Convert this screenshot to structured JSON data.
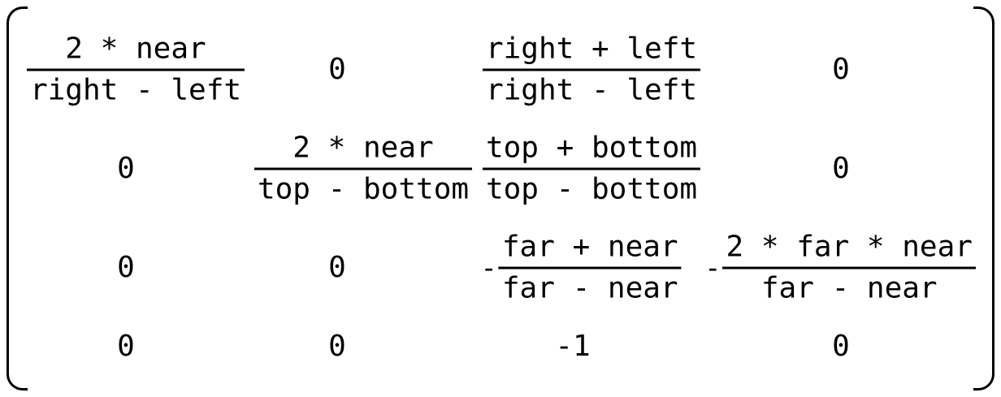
{
  "matrix": {
    "r1": {
      "c1": {
        "num": "2 * near",
        "den": "right - left"
      },
      "c2": "0",
      "c3": {
        "num": "right + left",
        "den": "right - left"
      },
      "c4": "0"
    },
    "r2": {
      "c1": "0",
      "c2": {
        "num": "2 * near",
        "den": "top - bottom"
      },
      "c3": {
        "num": "top + bottom",
        "den": "top - bottom"
      },
      "c4": "0"
    },
    "r3": {
      "c1": "0",
      "c2": "0",
      "c3": {
        "sign": "-",
        "num": "far + near",
        "den": "far - near"
      },
      "c4": {
        "sign": "-",
        "num": "2 * far * near",
        "den": "far - near"
      }
    },
    "r4": {
      "c1": "0",
      "c2": "0",
      "c3": "-1",
      "c4": "0"
    }
  }
}
